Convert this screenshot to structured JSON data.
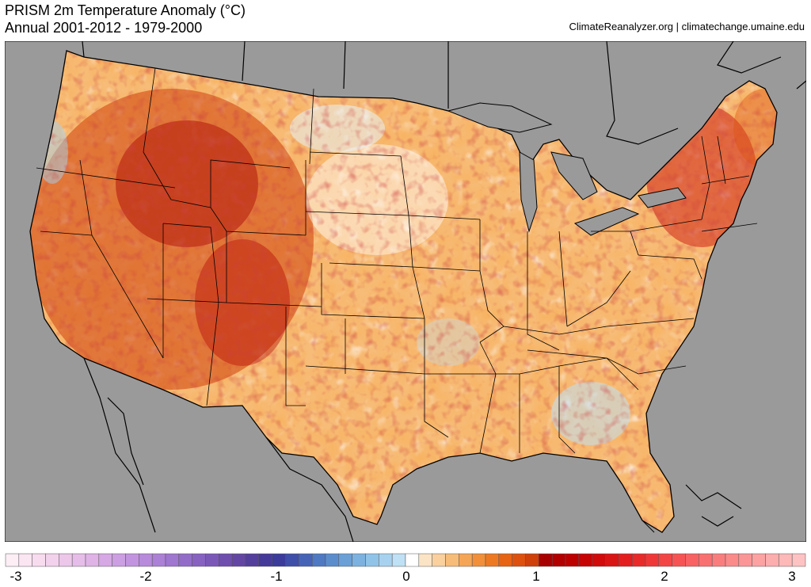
{
  "header": {
    "title_line1": "PRISM 2m Temperature Anomaly (°C)",
    "title_line2": "Annual 2001-2012 - 1979-2000",
    "credit": "ClimateReanalyzer.org | climatechange.umaine.edu"
  },
  "map": {
    "region": "Contiguous United States",
    "ocean_color": "#9a9a9a",
    "land_outside_color": "#9a9a9a",
    "border_color": "#000000"
  },
  "colorbar": {
    "min": -3,
    "max": 3,
    "step": 0.1,
    "ticks": [
      "-3",
      "-2",
      "-1",
      "0",
      "1",
      "2",
      "3"
    ],
    "colors": [
      "#fdeef6",
      "#fbe5f3",
      "#f7dcef",
      "#f2d1ec",
      "#ecc7ea",
      "#e6bde8",
      "#dfb3e6",
      "#d6a8e4",
      "#cc9ee2",
      "#c294df",
      "#b78adb",
      "#ab80d6",
      "#9f76d0",
      "#936cc9",
      "#8762c1",
      "#7b58b8",
      "#6f4eae",
      "#6346a4",
      "#543f9c",
      "#453a98",
      "#3b3b9c",
      "#3f4ea8",
      "#4664b6",
      "#4f79c2",
      "#5b8dcc",
      "#6aa0d6",
      "#7cb2df",
      "#90c3e8",
      "#a6d2ef",
      "#bfe0f5",
      "#ffffff",
      "#fbe3c6",
      "#f9d09e",
      "#f7bc78",
      "#f4a656",
      "#f19038",
      "#ed7a22",
      "#e66414",
      "#dc510e",
      "#cf400b",
      "#a80000",
      "#b20000",
      "#bc0000",
      "#c60404",
      "#d00b0b",
      "#d91414",
      "#e21e1e",
      "#e92a2a",
      "#ef3737",
      "#f34545",
      "#f65454",
      "#f86262",
      "#f97070",
      "#fa7d7d",
      "#fb8a8a",
      "#fb9696",
      "#fca2a2",
      "#fcadad",
      "#fdb8b8",
      "#fdc3c3"
    ]
  }
}
